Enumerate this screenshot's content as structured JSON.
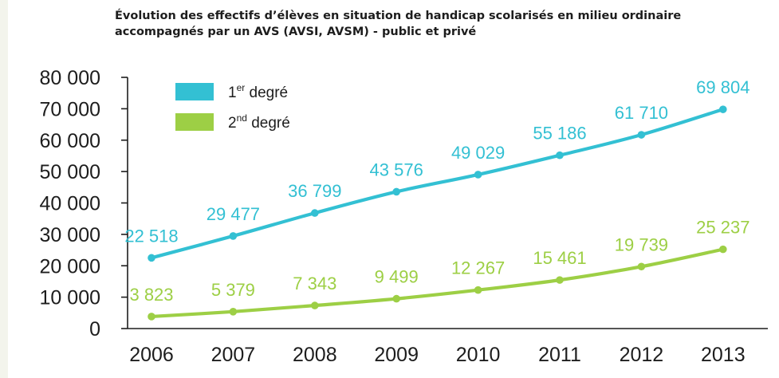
{
  "chart_data": {
    "type": "line",
    "title_line1": "Évolution des effectifs d’élèves en situation de handicap scolarisés en milieu ordinaire",
    "title_line2": "accompagnés par un AVS (AVSI, AVSM) - public et privé",
    "categories": [
      "2006",
      "2007",
      "2008",
      "2009",
      "2010",
      "2011",
      "2012",
      "2013"
    ],
    "y_ticks": [
      "0",
      "10 000",
      "20 000",
      "30 000",
      "40 000",
      "50 000",
      "60 000",
      "70 000",
      "80 000"
    ],
    "ylim": [
      0,
      80000
    ],
    "grid": false,
    "legend_position": "top-left",
    "series": [
      {
        "name": "1er degré",
        "name_base": "1",
        "name_sup": "er",
        "name_rest": " degré",
        "color": "#33c0d3",
        "values": [
          22518,
          29477,
          36799,
          43576,
          49029,
          55186,
          61710,
          69804
        ],
        "labels": [
          "22 518",
          "29 477",
          "36 799",
          "43 576",
          "49 029",
          "55 186",
          "61 710",
          "69 804"
        ]
      },
      {
        "name": "2nd degré",
        "name_base": "2",
        "name_sup": "nd",
        "name_rest": " degré",
        "color": "#9dcf45",
        "values": [
          3823,
          5379,
          7343,
          9499,
          12267,
          15461,
          19739,
          25237
        ],
        "labels": [
          "3 823",
          "5 379",
          "7 343",
          "9 499",
          "12 267",
          "15 461",
          "19 739",
          "25 237"
        ]
      }
    ]
  }
}
